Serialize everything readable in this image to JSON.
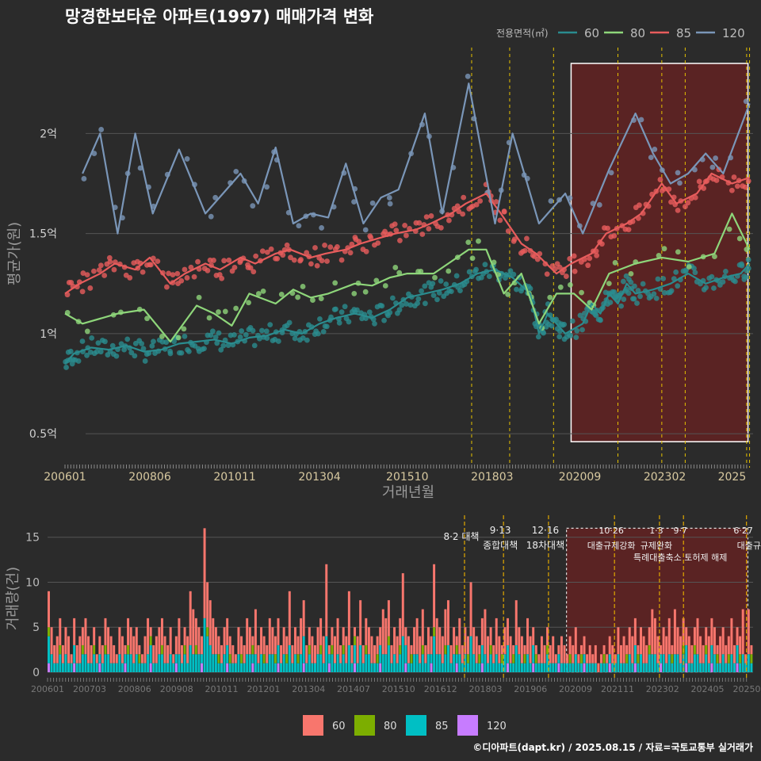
{
  "title": "망경한보타운 아파트(1997) 매매가격 변화",
  "footer": "©디아파트(dapt.kr) / 2025.08.15 / 자료=국토교통부 실거래가",
  "colors": {
    "background": "#2b2b2b",
    "grid": "#555555",
    "s60": "#2a8c8f",
    "s80": "#8ed67a",
    "s85": "#e85c5c",
    "s120": "#7a96b8",
    "bar60": "#f8766d",
    "bar80": "#7cae00",
    "bar85": "#00bfc4",
    "bar120": "#c77cff",
    "policy_line": "#e5c100",
    "highlight_fill": "#6b2222",
    "x_tick_text": "#d8c9a0"
  },
  "chart_data": [
    {
      "type": "line",
      "title": "망경한보타운 아파트(1997) 매매가격 변화",
      "xlabel": "거래년월",
      "ylabel": "평균가(원)",
      "ylim": [
        0.35,
        2.35
      ],
      "y_unit": "억",
      "yticks": [
        0.5,
        1,
        1.5,
        2
      ],
      "ytick_labels": [
        "0.5억",
        "1억",
        "1.5억",
        "2억"
      ],
      "xlim": [
        "2006-01",
        "2025-07"
      ],
      "xticks": [
        "200601",
        "200806",
        "201011",
        "201304",
        "201510",
        "201803",
        "202009",
        "202302",
        "2025"
      ],
      "legend_title": "전용면적(㎡)",
      "legend_position": "top-right",
      "policy_dates": [
        "2017-08",
        "2018-09",
        "2019-12",
        "2021-10",
        "2023-01",
        "2023-09",
        "2025-06",
        "2025-07"
      ],
      "highlight_range": [
        "2020-06",
        "2025-07"
      ],
      "series": [
        {
          "name": "60",
          "color_key": "s60",
          "x": [
            "2006-01",
            "2006-04",
            "2006-10",
            "2007-04",
            "2007-10",
            "2008-04",
            "2008-10",
            "2009-04",
            "2009-10",
            "2010-04",
            "2010-10",
            "2011-04",
            "2011-10",
            "2012-04",
            "2012-10",
            "2013-04",
            "2013-10",
            "2014-04",
            "2014-10",
            "2015-04",
            "2015-10",
            "2016-04",
            "2016-10",
            "2017-04",
            "2017-10",
            "2018-04",
            "2018-10",
            "2019-04",
            "2019-07",
            "2019-10",
            "2020-01",
            "2020-04",
            "2020-10",
            "2021-01",
            "2021-04",
            "2021-07",
            "2021-10",
            "2022-01",
            "2022-04",
            "2022-10",
            "2023-04",
            "2023-10",
            "2024-04",
            "2024-10",
            "2025-04",
            "2025-07"
          ],
          "y": [
            0.85,
            0.9,
            0.93,
            0.92,
            0.94,
            0.91,
            0.92,
            0.95,
            0.96,
            0.97,
            0.95,
            0.98,
            0.99,
            1.02,
            1.0,
            1.05,
            1.08,
            1.1,
            1.08,
            1.12,
            1.18,
            1.2,
            1.22,
            1.25,
            1.3,
            1.32,
            1.28,
            1.2,
            1.0,
            1.1,
            1.05,
            1.0,
            1.05,
            1.15,
            1.1,
            1.2,
            1.15,
            1.25,
            1.2,
            1.22,
            1.25,
            1.3,
            1.25,
            1.28,
            1.3,
            1.35
          ]
        },
        {
          "name": "80",
          "color_key": "s80",
          "x": [
            "2006-01",
            "2006-07",
            "2007-07",
            "2008-04",
            "2009-01",
            "2009-10",
            "2010-04",
            "2010-10",
            "2011-04",
            "2012-01",
            "2012-07",
            "2013-01",
            "2013-07",
            "2014-04",
            "2014-10",
            "2015-04",
            "2015-10",
            "2016-07",
            "2017-01",
            "2017-07",
            "2018-01",
            "2018-07",
            "2019-01",
            "2019-07",
            "2020-01",
            "2020-07",
            "2021-01",
            "2021-07",
            "2022-04",
            "2023-01",
            "2023-10",
            "2024-07",
            "2025-01",
            "2025-07"
          ],
          "y": [
            1.1,
            1.05,
            1.1,
            1.12,
            0.96,
            1.14,
            1.1,
            1.04,
            1.2,
            1.15,
            1.22,
            1.18,
            1.2,
            1.25,
            1.24,
            1.28,
            1.3,
            1.3,
            1.36,
            1.42,
            1.42,
            1.2,
            1.3,
            1.05,
            1.2,
            1.2,
            1.12,
            1.3,
            1.35,
            1.38,
            1.36,
            1.4,
            1.6,
            1.42
          ]
        },
        {
          "name": "85",
          "color_key": "s85",
          "x": [
            "2006-01",
            "2006-06",
            "2007-01",
            "2007-06",
            "2008-01",
            "2008-06",
            "2009-01",
            "2009-06",
            "2010-01",
            "2010-06",
            "2011-01",
            "2011-06",
            "2012-01",
            "2012-06",
            "2013-01",
            "2013-06",
            "2014-01",
            "2014-06",
            "2015-01",
            "2015-06",
            "2016-01",
            "2016-06",
            "2017-01",
            "2017-06",
            "2018-01",
            "2018-06",
            "2019-01",
            "2019-06",
            "2020-01",
            "2020-06",
            "2021-01",
            "2021-06",
            "2022-01",
            "2022-06",
            "2023-01",
            "2023-06",
            "2024-01",
            "2024-06",
            "2025-01",
            "2025-07"
          ],
          "y": [
            1.2,
            1.25,
            1.3,
            1.35,
            1.32,
            1.38,
            1.25,
            1.3,
            1.35,
            1.32,
            1.38,
            1.35,
            1.4,
            1.42,
            1.38,
            1.4,
            1.42,
            1.45,
            1.48,
            1.5,
            1.52,
            1.55,
            1.6,
            1.65,
            1.7,
            1.6,
            1.45,
            1.4,
            1.3,
            1.35,
            1.4,
            1.5,
            1.55,
            1.6,
            1.75,
            1.65,
            1.7,
            1.8,
            1.75,
            1.78
          ]
        },
        {
          "name": "120",
          "color_key": "s120",
          "x": [
            "2006-07",
            "2007-01",
            "2007-07",
            "2008-01",
            "2008-07",
            "2009-04",
            "2010-01",
            "2010-07",
            "2011-01",
            "2011-07",
            "2012-01",
            "2012-07",
            "2013-01",
            "2013-07",
            "2014-01",
            "2014-07",
            "2015-01",
            "2015-07",
            "2016-04",
            "2016-10",
            "2017-07",
            "2018-04",
            "2018-10",
            "2019-07",
            "2020-04",
            "2020-10",
            "2021-07",
            "2022-04",
            "2022-10",
            "2023-04",
            "2023-10",
            "2024-04",
            "2024-10",
            "2025-07"
          ],
          "y": [
            1.8,
            2.0,
            1.5,
            2.0,
            1.6,
            1.92,
            1.6,
            1.7,
            1.8,
            1.65,
            1.93,
            1.55,
            1.6,
            1.58,
            1.85,
            1.55,
            1.68,
            1.72,
            2.1,
            1.6,
            2.25,
            1.55,
            2.0,
            1.55,
            1.7,
            1.5,
            1.82,
            2.1,
            1.9,
            1.75,
            1.8,
            1.9,
            1.8,
            2.15
          ]
        }
      ]
    },
    {
      "type": "bar",
      "xlabel": "",
      "ylabel": "거래량(건)",
      "ylim": [
        0,
        17
      ],
      "yticks": [
        0,
        5,
        10,
        15
      ],
      "xticks": [
        "200601",
        "200703",
        "200806",
        "200908",
        "201011",
        "201201",
        "201304",
        "201407",
        "201510",
        "201612",
        "201803",
        "201906",
        "202009",
        "202111",
        "202302",
        "202405",
        "202507"
      ],
      "stacked": true,
      "stack_order": [
        "120",
        "85",
        "80",
        "60"
      ],
      "categories_per_year_note": "",
      "series": [
        {
          "name": "60",
          "color_key": "bar60"
        },
        {
          "name": "80",
          "color_key": "bar80"
        },
        {
          "name": "85",
          "color_key": "bar85"
        },
        {
          "name": "120",
          "color_key": "bar120"
        }
      ],
      "totals_by_month": [
        9,
        5,
        3,
        4,
        6,
        3,
        5,
        4,
        2,
        6,
        3,
        4,
        5,
        6,
        4,
        3,
        5,
        2,
        4,
        3,
        6,
        5,
        4,
        3,
        2,
        5,
        4,
        3,
        6,
        5,
        4,
        5,
        3,
        2,
        4,
        6,
        5,
        3,
        4,
        5,
        6,
        4,
        3,
        5,
        2,
        4,
        6,
        3,
        5,
        4,
        9,
        7,
        6,
        5,
        4,
        16,
        10,
        8,
        6,
        5,
        4,
        3,
        5,
        6,
        4,
        3,
        2,
        5,
        4,
        3,
        6,
        5,
        4,
        7,
        3,
        5,
        4,
        3,
        6,
        5,
        4,
        6,
        3,
        5,
        4,
        9,
        3,
        5,
        4,
        6,
        8,
        3,
        5,
        4,
        3,
        5,
        6,
        4,
        12,
        3,
        5,
        4,
        6,
        3,
        5,
        4,
        9,
        3,
        5,
        4,
        8,
        3,
        6,
        5,
        4,
        3,
        4,
        5,
        7,
        6,
        8,
        3,
        5,
        4,
        6,
        11,
        5,
        4,
        3,
        5,
        6,
        4,
        7,
        3,
        5,
        4,
        12,
        6,
        5,
        4,
        7,
        8,
        3,
        5,
        4,
        6,
        3,
        5,
        4,
        10,
        5,
        4,
        3,
        6,
        7,
        4,
        5,
        3,
        6,
        4,
        3,
        5,
        6,
        4,
        3,
        8,
        5,
        4,
        3,
        6,
        4,
        5,
        3,
        2,
        4,
        3,
        5,
        3,
        4,
        2,
        3,
        4,
        3,
        2,
        4,
        3,
        5,
        2,
        3,
        4,
        2,
        3,
        2,
        3,
        1,
        2,
        3,
        2,
        4,
        3,
        2,
        5,
        3,
        4,
        3,
        5,
        4,
        6,
        3,
        5,
        4,
        3,
        5,
        7,
        6,
        4,
        3,
        5,
        4,
        6,
        3,
        7,
        5,
        4,
        6,
        5,
        4,
        3,
        5,
        6,
        4,
        3,
        5,
        4,
        6,
        5,
        3,
        4,
        5,
        3,
        4,
        6,
        3,
        5,
        4,
        7,
        2,
        7,
        3
      ],
      "policy_markers": [
        {
          "date": "2017-08",
          "label_top": "",
          "label_bottom": "8·2 대책"
        },
        {
          "date": "2018-09",
          "label_top": "9·13",
          "label_bottom": "종합대책"
        },
        {
          "date": "2019-12",
          "label_top": "12·16",
          "label_bottom": "18차대책"
        },
        {
          "date": "2021-10",
          "label_top": "10·26",
          "label_bottom": "대출규제강화"
        },
        {
          "date": "2023-01",
          "label_top": "1·3",
          "label_bottom": "규제완화"
        },
        {
          "date": "2023-09",
          "label_top": "9·7",
          "label_bottom": "특례대출축소 토허제 해제"
        },
        {
          "date": "2025-06",
          "label_top": "6·27",
          "label_bottom": "대출규"
        }
      ],
      "legend_position": "bottom",
      "highlight_range": [
        "2020-06",
        "2025-07"
      ]
    }
  ]
}
